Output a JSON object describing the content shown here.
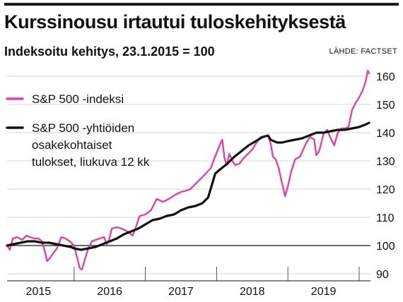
{
  "header": {
    "title": "Kurssinousu irtautui tuloskehityksestä",
    "subtitle": "Indeksoitu kehitys, 23.1.2015 = 100",
    "source": "LÄHDE: FACTSET"
  },
  "colors": {
    "sp500_index": "#e0449a",
    "sp500_eps": "#111111",
    "grid": "#d4d4d4",
    "axis": "#111111",
    "accent_rule": "#1b1b1b"
  },
  "chart_data": {
    "type": "line",
    "title": "Kurssinousu irtautui tuloskehityksestä",
    "subtitle": "Indeksoitu kehitys, 23.1.2015 = 100",
    "x_unit": "year",
    "xlim": [
      2015.06,
      2020.25
    ],
    "ylim": [
      90,
      163
    ],
    "y_ticks": [
      90,
      100,
      110,
      120,
      130,
      140,
      150,
      160
    ],
    "y_tick_labels": [
      "90",
      "100",
      "110",
      "120",
      "130",
      "140",
      "150",
      "160"
    ],
    "x_tick_labels": [
      {
        "label": "2015",
        "x": 2015.5
      },
      {
        "label": "2016",
        "x": 2016.5
      },
      {
        "label": "2017",
        "x": 2017.5
      },
      {
        "label": "2018",
        "x": 2018.5
      },
      {
        "label": "2019",
        "x": 2019.5
      }
    ],
    "year_boundaries": [
      2016,
      2017,
      2018,
      2019,
      2020
    ],
    "reference_line": 100,
    "grid": true,
    "legend_position": "top-left",
    "series": [
      {
        "name": "S&P 500 -indeksi",
        "color": "#e0449a",
        "points": [
          [
            2015.06,
            100.0
          ],
          [
            2015.1,
            98.5
          ],
          [
            2015.14,
            102.5
          ],
          [
            2015.2,
            103.0
          ],
          [
            2015.27,
            102.0
          ],
          [
            2015.33,
            103.5
          ],
          [
            2015.38,
            103.0
          ],
          [
            2015.44,
            102.5
          ],
          [
            2015.5,
            102.5
          ],
          [
            2015.55,
            101.5
          ],
          [
            2015.59,
            98.0
          ],
          [
            2015.62,
            94.5
          ],
          [
            2015.66,
            95.5
          ],
          [
            2015.7,
            97.0
          ],
          [
            2015.76,
            99.0
          ],
          [
            2015.82,
            103.0
          ],
          [
            2015.88,
            102.5
          ],
          [
            2015.94,
            101.5
          ],
          [
            2016.0,
            100.0
          ],
          [
            2016.04,
            96.0
          ],
          [
            2016.08,
            92.0
          ],
          [
            2016.11,
            91.5
          ],
          [
            2016.15,
            95.0
          ],
          [
            2016.2,
            99.0
          ],
          [
            2016.25,
            101.5
          ],
          [
            2016.3,
            102.0
          ],
          [
            2016.36,
            102.5
          ],
          [
            2016.42,
            103.0
          ],
          [
            2016.46,
            100.5
          ],
          [
            2016.49,
            102.0
          ],
          [
            2016.53,
            106.0
          ],
          [
            2016.6,
            106.5
          ],
          [
            2016.67,
            106.0
          ],
          [
            2016.75,
            105.0
          ],
          [
            2016.82,
            103.5
          ],
          [
            2016.86,
            106.0
          ],
          [
            2016.92,
            110.5
          ],
          [
            2017.0,
            111.0
          ],
          [
            2017.08,
            112.5
          ],
          [
            2017.16,
            116.5
          ],
          [
            2017.25,
            115.5
          ],
          [
            2017.33,
            116.5
          ],
          [
            2017.42,
            118.0
          ],
          [
            2017.5,
            119.0
          ],
          [
            2017.58,
            119.5
          ],
          [
            2017.63,
            120.0
          ],
          [
            2017.67,
            121.0
          ],
          [
            2017.75,
            123.0
          ],
          [
            2017.83,
            125.0
          ],
          [
            2017.92,
            127.5
          ],
          [
            2017.97,
            131.0
          ],
          [
            2018.05,
            136.0
          ],
          [
            2018.08,
            137.5
          ],
          [
            2018.11,
            131.0
          ],
          [
            2018.14,
            128.5
          ],
          [
            2018.18,
            132.5
          ],
          [
            2018.22,
            130.0
          ],
          [
            2018.26,
            128.5
          ],
          [
            2018.32,
            129.0
          ],
          [
            2018.38,
            131.0
          ],
          [
            2018.44,
            132.5
          ],
          [
            2018.5,
            134.0
          ],
          [
            2018.56,
            136.5
          ],
          [
            2018.62,
            138.5
          ],
          [
            2018.67,
            138.5
          ],
          [
            2018.72,
            139.0
          ],
          [
            2018.76,
            136.0
          ],
          [
            2018.79,
            131.5
          ],
          [
            2018.83,
            130.5
          ],
          [
            2018.87,
            127.5
          ],
          [
            2018.91,
            123.0
          ],
          [
            2018.96,
            117.5
          ],
          [
            2019.0,
            121.0
          ],
          [
            2019.05,
            126.5
          ],
          [
            2019.1,
            130.5
          ],
          [
            2019.17,
            131.5
          ],
          [
            2019.25,
            136.0
          ],
          [
            2019.31,
            138.5
          ],
          [
            2019.37,
            137.5
          ],
          [
            2019.4,
            132.0
          ],
          [
            2019.44,
            133.5
          ],
          [
            2019.5,
            139.5
          ],
          [
            2019.55,
            141.0
          ],
          [
            2019.6,
            138.0
          ],
          [
            2019.65,
            135.5
          ],
          [
            2019.7,
            140.0
          ],
          [
            2019.75,
            141.5
          ],
          [
            2019.8,
            141.5
          ],
          [
            2019.85,
            142.0
          ],
          [
            2019.9,
            148.0
          ],
          [
            2019.95,
            150.5
          ],
          [
            2020.0,
            152.5
          ],
          [
            2020.05,
            155.0
          ],
          [
            2020.09,
            158.0
          ],
          [
            2020.12,
            162.0
          ],
          [
            2020.14,
            161.0
          ]
        ]
      },
      {
        "name": "S&P 500 -yhtiöiden osakekohtaiset tulokset, liukuva 12 kk",
        "label_lines": [
          "S&P 500 -yhtiöiden",
          "osakekohtaiset",
          "tulokset, liukuva 12 kk"
        ],
        "color": "#111111",
        "points": [
          [
            2015.06,
            100.0
          ],
          [
            2015.15,
            100.5
          ],
          [
            2015.25,
            101.0
          ],
          [
            2015.35,
            101.5
          ],
          [
            2015.45,
            101.5
          ],
          [
            2015.55,
            101.0
          ],
          [
            2015.65,
            101.0
          ],
          [
            2015.75,
            100.5
          ],
          [
            2015.85,
            100.0
          ],
          [
            2015.95,
            99.5
          ],
          [
            2016.0,
            99.0
          ],
          [
            2016.1,
            98.5
          ],
          [
            2016.2,
            99.0
          ],
          [
            2016.3,
            99.5
          ],
          [
            2016.4,
            100.5
          ],
          [
            2016.5,
            101.5
          ],
          [
            2016.6,
            102.5
          ],
          [
            2016.7,
            104.0
          ],
          [
            2016.8,
            105.0
          ],
          [
            2016.9,
            106.0
          ],
          [
            2017.0,
            107.5
          ],
          [
            2017.1,
            109.0
          ],
          [
            2017.2,
            109.5
          ],
          [
            2017.3,
            110.5
          ],
          [
            2017.4,
            111.0
          ],
          [
            2017.5,
            112.5
          ],
          [
            2017.6,
            113.5
          ],
          [
            2017.7,
            114.0
          ],
          [
            2017.8,
            115.0
          ],
          [
            2017.88,
            117.0
          ],
          [
            2017.94,
            122.0
          ],
          [
            2017.98,
            125.5
          ],
          [
            2018.05,
            127.0
          ],
          [
            2018.15,
            129.0
          ],
          [
            2018.25,
            131.5
          ],
          [
            2018.35,
            133.5
          ],
          [
            2018.45,
            135.5
          ],
          [
            2018.55,
            137.0
          ],
          [
            2018.65,
            138.5
          ],
          [
            2018.72,
            139.0
          ],
          [
            2018.76,
            137.5
          ],
          [
            2018.8,
            137.0
          ],
          [
            2018.85,
            136.5
          ],
          [
            2018.92,
            136.5
          ],
          [
            2019.0,
            137.0
          ],
          [
            2019.1,
            137.5
          ],
          [
            2019.2,
            138.0
          ],
          [
            2019.3,
            139.0
          ],
          [
            2019.4,
            140.0
          ],
          [
            2019.5,
            140.0
          ],
          [
            2019.6,
            140.5
          ],
          [
            2019.7,
            141.0
          ],
          [
            2019.8,
            141.0
          ],
          [
            2019.9,
            141.5
          ],
          [
            2020.0,
            142.0
          ],
          [
            2020.05,
            142.5
          ],
          [
            2020.1,
            143.0
          ],
          [
            2020.14,
            143.5
          ]
        ]
      }
    ]
  }
}
